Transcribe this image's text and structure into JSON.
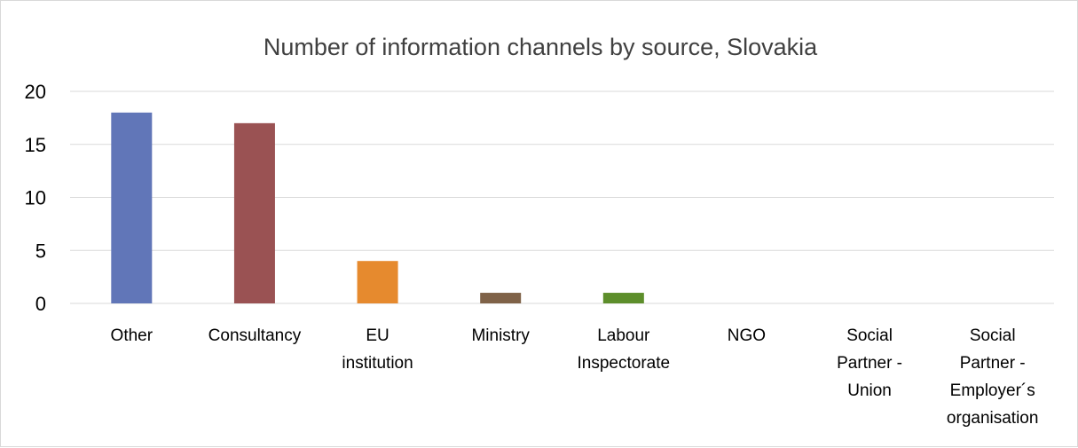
{
  "chart_data": {
    "type": "bar",
    "title": "Number of information channels by source, Slovakia",
    "xlabel": "",
    "ylabel": "",
    "ylim": [
      0,
      20
    ],
    "yticks": [
      0,
      5,
      10,
      15,
      20
    ],
    "grid": true,
    "legend": "none",
    "categories": [
      [
        "Other"
      ],
      [
        "Consultancy"
      ],
      [
        "EU",
        "institution"
      ],
      [
        "Ministry"
      ],
      [
        "Labour",
        "Inspectorate"
      ],
      [
        "NGO"
      ],
      [
        "Social",
        "Partner -",
        "Union"
      ],
      [
        "Social",
        "Partner -",
        "Employer´s",
        "organisation"
      ]
    ],
    "values": [
      18,
      17,
      4,
      1,
      1,
      0,
      0,
      0
    ],
    "colors": [
      "#6176b8",
      "#9a5253",
      "#e68a2e",
      "#7f6248",
      "#5d8e2b",
      "#4472c4",
      "#4472c4",
      "#4472c4"
    ]
  }
}
